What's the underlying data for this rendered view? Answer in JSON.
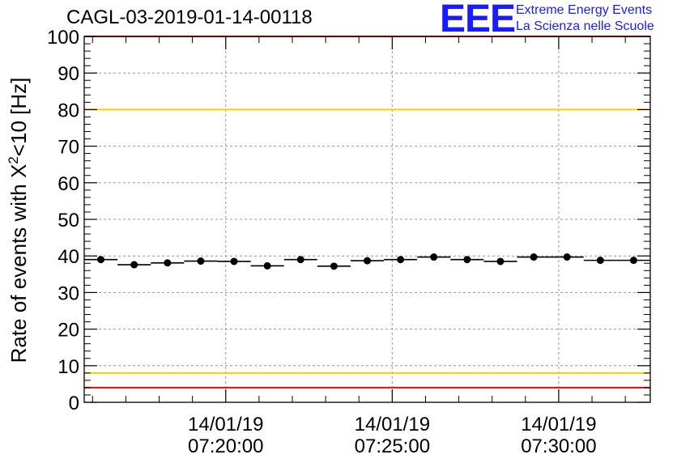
{
  "header": {
    "title": "CAGL-03-2019-01-14-00118"
  },
  "logo": {
    "mark": "EEE",
    "line1": "Extreme Energy Events",
    "line2": "La Scienza nelle Scuole",
    "color": "#1a1aff"
  },
  "chart_data": {
    "type": "scatter",
    "title": "CAGL-03-2019-01-14-00118",
    "ylabel_main": "Rate of events with X",
    "ylabel_sup": "2",
    "ylabel_tail": "<10 [Hz]",
    "xlabel": "",
    "ylim": [
      0,
      100
    ],
    "yticks": [
      0,
      10,
      20,
      30,
      40,
      50,
      60,
      70,
      80,
      90,
      100
    ],
    "xlim_minutes": [
      15.75,
      32.75
    ],
    "xticks": [
      {
        "minute": 20,
        "date": "14/01/19",
        "time": "07:20:00"
      },
      {
        "minute": 25,
        "date": "14/01/19",
        "time": "07:25:00"
      },
      {
        "minute": 30,
        "date": "14/01/19",
        "time": "07:30:00"
      }
    ],
    "bin_width_minutes": 1,
    "series": [
      {
        "x_minutes": [
          16.25,
          17.25,
          18.25,
          19.25,
          20.25,
          21.25,
          22.25,
          23.25,
          24.25,
          25.25,
          26.25,
          27.25,
          28.25,
          29.25,
          30.25,
          31.25,
          32.25
        ],
        "values": [
          39.0,
          37.6,
          38.1,
          38.6,
          38.5,
          37.3,
          39.0,
          37.2,
          38.7,
          39.0,
          39.7,
          39.0,
          38.5,
          39.7,
          39.7,
          38.8,
          38.8
        ]
      }
    ],
    "reference_lines": [
      {
        "y": 100,
        "color": "#ff0000"
      },
      {
        "y": 80,
        "color": "#ffcc00"
      },
      {
        "y": 8,
        "color": "#ffcc00"
      },
      {
        "y": 4,
        "color": "#ff0000"
      }
    ],
    "grid": true
  }
}
